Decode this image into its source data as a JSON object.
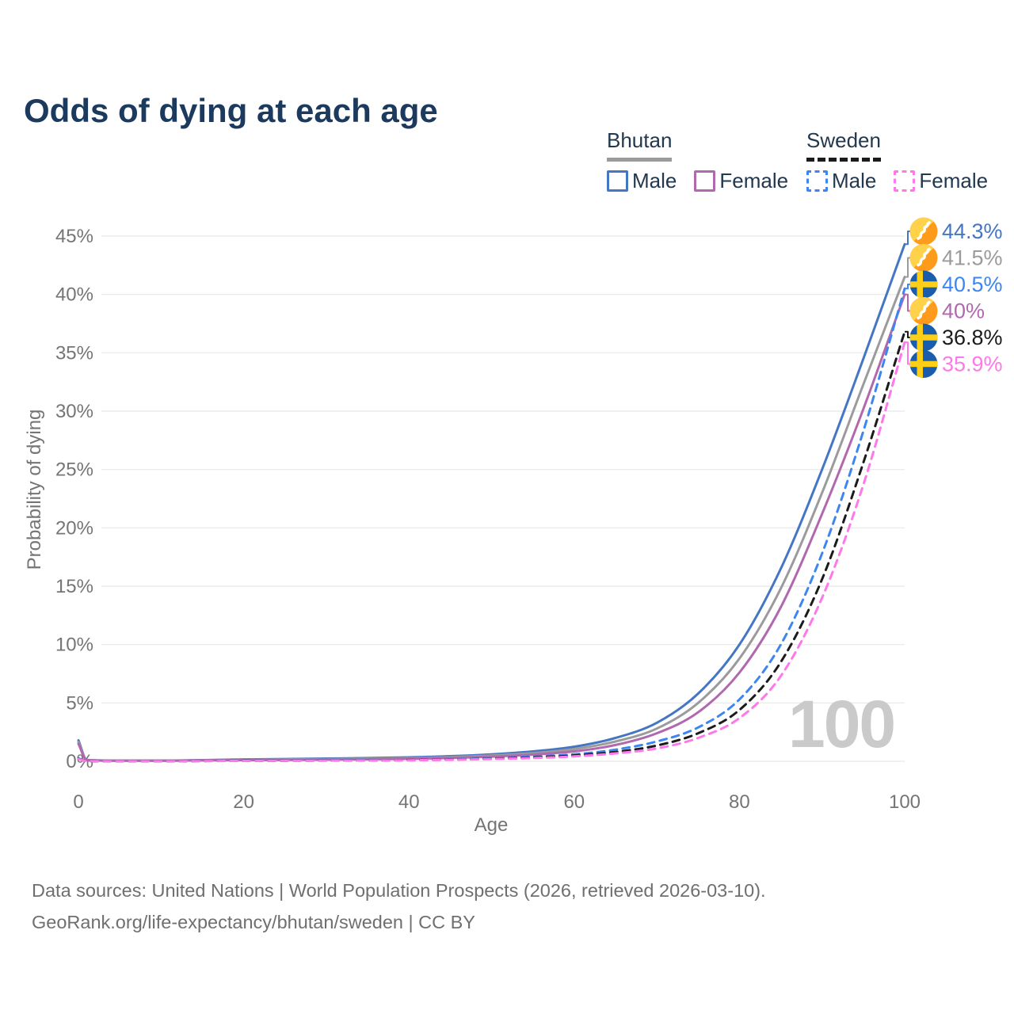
{
  "title": "Odds of dying at each age",
  "legend": {
    "groups": [
      {
        "name": "Bhutan",
        "items": [
          {
            "label": "Male"
          },
          {
            "label": "Female"
          }
        ]
      },
      {
        "name": "Sweden",
        "items": [
          {
            "label": "Male"
          },
          {
            "label": "Female"
          }
        ]
      }
    ]
  },
  "footer": {
    "line1": "Data sources: United Nations | World Population Prospects (2026, retrieved 2026-03-10).",
    "line2": "GeoRank.org/life-expectancy/bhutan/sweden | CC BY"
  },
  "chart_data": {
    "type": "line",
    "title": "Odds of dying at each age",
    "xlabel": "Age",
    "ylabel": "Probability of dying",
    "xlim": [
      0,
      100
    ],
    "ylim": [
      0,
      45
    ],
    "grid": true,
    "legend_position": "top-right",
    "age_indicator": "100",
    "yticks": [
      {
        "v": 0,
        "label": "0%"
      },
      {
        "v": 5,
        "label": "5%"
      },
      {
        "v": 10,
        "label": "10%"
      },
      {
        "v": 15,
        "label": "15%"
      },
      {
        "v": 20,
        "label": "20%"
      },
      {
        "v": 25,
        "label": "25%"
      },
      {
        "v": 30,
        "label": "30%"
      },
      {
        "v": 35,
        "label": "35%"
      },
      {
        "v": 40,
        "label": "40%"
      },
      {
        "v": 45,
        "label": "45%"
      }
    ],
    "xticks": [
      {
        "v": 0,
        "label": "0"
      },
      {
        "v": 20,
        "label": "20"
      },
      {
        "v": 40,
        "label": "40"
      },
      {
        "v": 60,
        "label": "60"
      },
      {
        "v": 80,
        "label": "80"
      },
      {
        "v": 100,
        "label": "100"
      }
    ],
    "ages": [
      0,
      1,
      5,
      10,
      15,
      20,
      25,
      30,
      35,
      40,
      45,
      50,
      55,
      60,
      65,
      70,
      75,
      80,
      85,
      90,
      95,
      100
    ],
    "series": [
      {
        "id": "bhutan-male",
        "name": "Bhutan Male",
        "country": "Bhutan",
        "sex": "Male",
        "line": "solid",
        "color": "#4576c4",
        "flag": "bhutan",
        "end_label": "44.3%",
        "end_value": 44.3,
        "values": [
          1.8,
          0.12,
          0.06,
          0.06,
          0.1,
          0.16,
          0.2,
          0.24,
          0.28,
          0.34,
          0.44,
          0.6,
          0.85,
          1.25,
          2.0,
          3.3,
          5.8,
          10.0,
          16.5,
          25.0,
          34.5,
          44.3
        ]
      },
      {
        "id": "bhutan-all",
        "name": "Bhutan Both sexes",
        "country": "Bhutan",
        "sex": "All",
        "line": "solid",
        "color": "#9b9b9b",
        "flag": "bhutan",
        "end_label": "41.5%",
        "end_value": 41.5,
        "values": [
          1.65,
          0.11,
          0.055,
          0.055,
          0.09,
          0.13,
          0.16,
          0.19,
          0.22,
          0.27,
          0.36,
          0.5,
          0.7,
          1.05,
          1.7,
          2.8,
          5.0,
          8.8,
          14.8,
          23.0,
          32.3,
          41.5
        ]
      },
      {
        "id": "bhutan-female",
        "name": "Bhutan Female",
        "country": "Bhutan",
        "sex": "Female",
        "line": "solid",
        "color": "#b069ae",
        "flag": "bhutan",
        "end_label": "40%",
        "end_value": 40,
        "values": [
          1.5,
          0.1,
          0.05,
          0.05,
          0.08,
          0.1,
          0.12,
          0.14,
          0.17,
          0.21,
          0.28,
          0.4,
          0.58,
          0.85,
          1.4,
          2.4,
          4.2,
          7.6,
          13.2,
          21.2,
          30.2,
          40.0
        ]
      },
      {
        "id": "sweden-male",
        "name": "Sweden Male",
        "country": "Sweden",
        "sex": "Male",
        "line": "dashed",
        "color": "#3d86f2",
        "flag": "sweden",
        "end_label": "40.5%",
        "end_value": 40.5,
        "values": [
          0.25,
          0.02,
          0.01,
          0.01,
          0.03,
          0.06,
          0.07,
          0.08,
          0.1,
          0.13,
          0.18,
          0.26,
          0.4,
          0.6,
          1.0,
          1.7,
          2.9,
          5.3,
          10.0,
          17.8,
          28.3,
          40.5
        ]
      },
      {
        "id": "sweden-all",
        "name": "Sweden Both sexes",
        "country": "Sweden",
        "sex": "All",
        "line": "dashed",
        "color": "#1b1b1b",
        "flag": "sweden",
        "end_label": "36.8%",
        "end_value": 36.8,
        "values": [
          0.22,
          0.02,
          0.01,
          0.01,
          0.025,
          0.045,
          0.055,
          0.065,
          0.08,
          0.11,
          0.15,
          0.22,
          0.33,
          0.5,
          0.8,
          1.35,
          2.4,
          4.4,
          8.5,
          15.6,
          25.6,
          36.8
        ]
      },
      {
        "id": "sweden-female",
        "name": "Sweden Female",
        "country": "Sweden",
        "sex": "Female",
        "line": "dashed",
        "color": "#fe78ea",
        "flag": "sweden",
        "end_label": "35.9%",
        "end_value": 35.9,
        "values": [
          0.2,
          0.02,
          0.01,
          0.01,
          0.02,
          0.035,
          0.045,
          0.055,
          0.07,
          0.09,
          0.13,
          0.19,
          0.28,
          0.42,
          0.68,
          1.1,
          2.0,
          3.7,
          7.3,
          14.0,
          23.7,
          35.9
        ]
      }
    ],
    "colors": {
      "title": "#1c3a5e",
      "axis_text": "#757575",
      "gridline": "#ececec",
      "watermark": "#cacaca",
      "bhutan_flag_yellow": "#ffd24a",
      "bhutan_flag_orange": "#ff9b1a",
      "sweden_flag_blue": "#1a5dad",
      "sweden_flag_yellow": "#fdd017"
    }
  }
}
